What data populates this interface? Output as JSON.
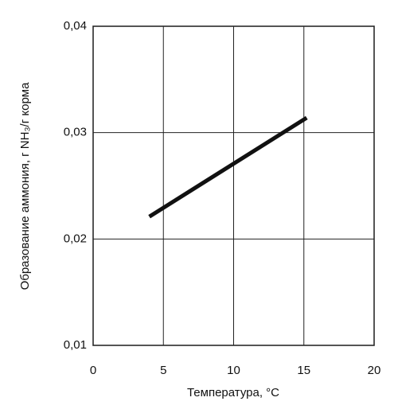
{
  "chart_data": {
    "type": "line",
    "x_label": "Температура, °C",
    "y_label": "Образование аммония, г NH₃/г корма",
    "series": [
      {
        "x": [
          4,
          15.2
        ],
        "values": [
          0.0221,
          0.0314
        ],
        "color": "#111111"
      }
    ],
    "xlim": [
      0,
      20
    ],
    "xticks": [
      0,
      5,
      10,
      15,
      20
    ],
    "ylim": [
      0.01,
      0.04
    ],
    "yticks": [
      {
        "value": 0.01,
        "label": "0,01"
      },
      {
        "value": 0.02,
        "label": "0,02"
      },
      {
        "value": 0.03,
        "label": "0,03"
      },
      {
        "value": 0.04,
        "label": "0,04"
      }
    ],
    "grid": true
  }
}
